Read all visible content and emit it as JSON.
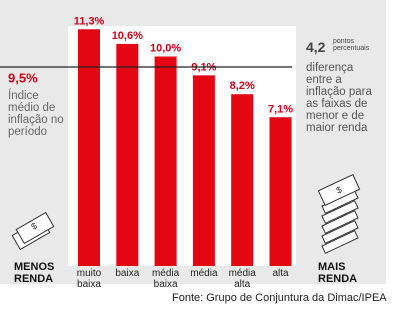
{
  "chart_data": {
    "type": "bar",
    "categories": [
      "muito baixa",
      "baixa",
      "média baixa",
      "média",
      "média alta",
      "alta"
    ],
    "values": [
      11.3,
      10.6,
      10.0,
      9.1,
      8.2,
      7.1
    ],
    "value_labels": [
      "11,3%",
      "10,6%",
      "10,0%",
      "9,1%",
      "8,2%",
      "7,1%"
    ],
    "color": "#e30613",
    "ylim": [
      0,
      12
    ],
    "reference": {
      "value": 9.5,
      "label": "9,5%",
      "text": "Índice médio de inflação no período"
    },
    "annotation": {
      "number": "4,2",
      "unit": "pontos percentuais",
      "text": "diferença entre a inflação para as faixas de menor e de maior renda"
    },
    "left_label": "MENOS RENDA",
    "right_label": "MAIS RENDA",
    "source": "Fonte: Grupo de Conjuntura da Dimac/IPEA"
  }
}
